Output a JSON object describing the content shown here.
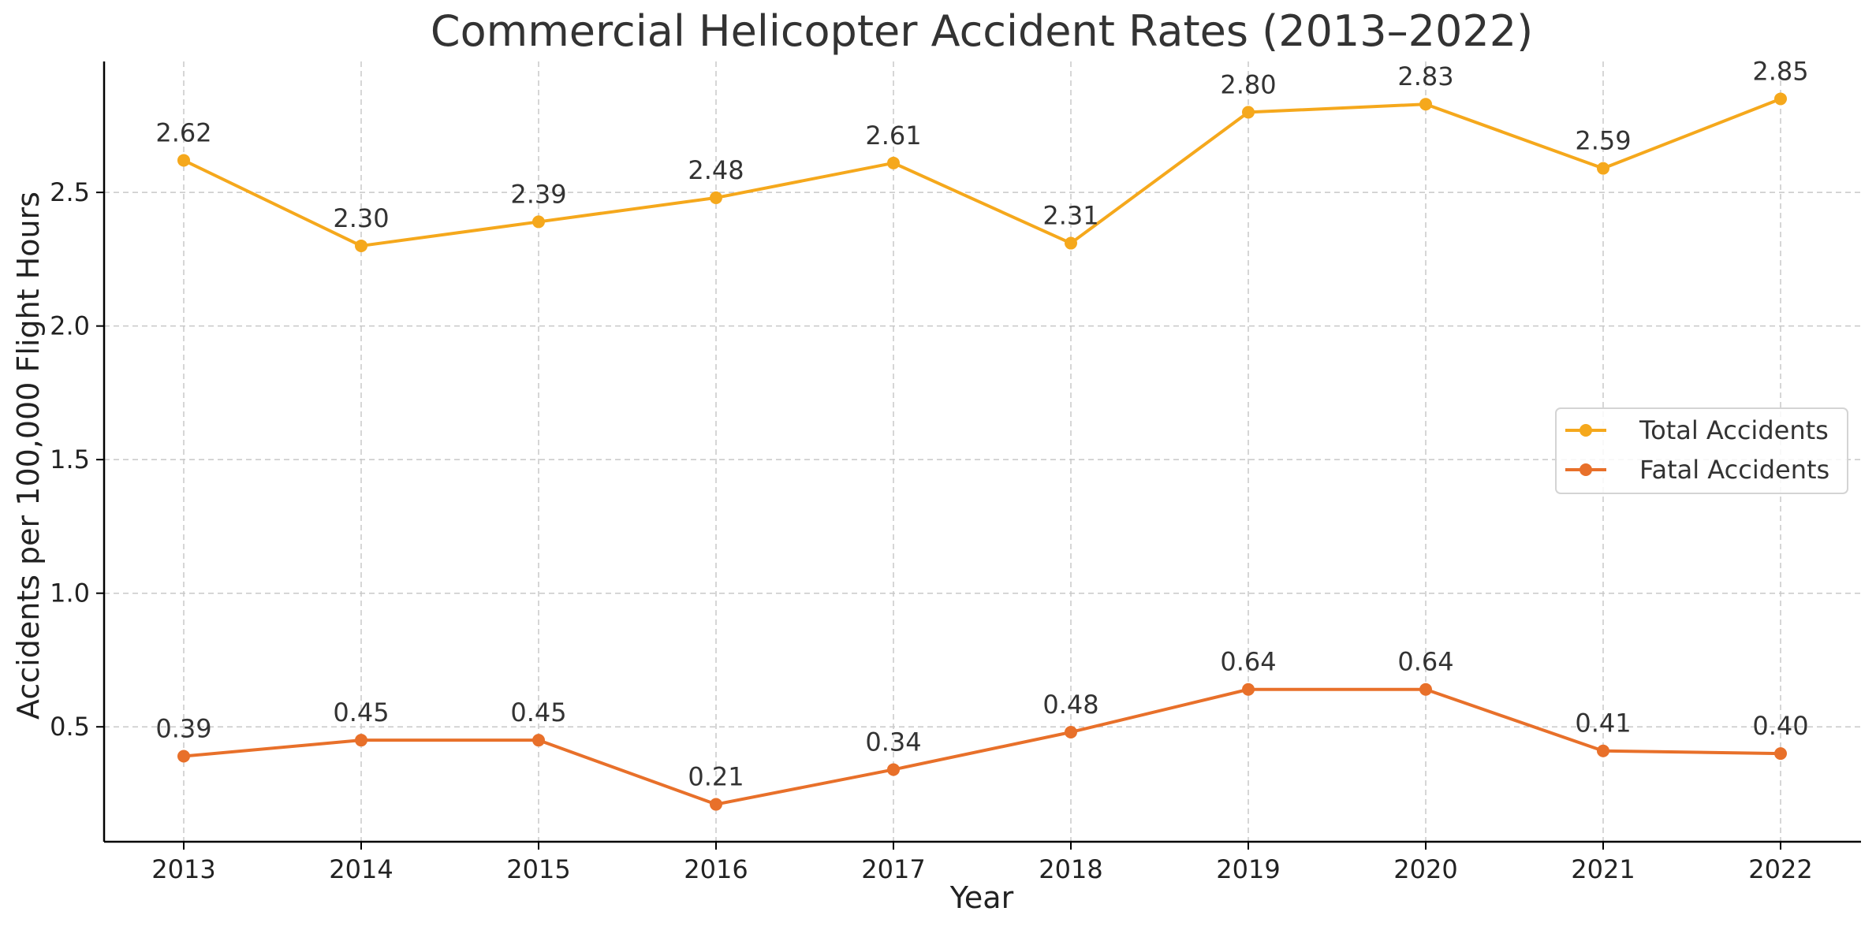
{
  "chart_data": {
    "type": "line",
    "title": "Commercial Helicopter Accident Rates (2013–2022)",
    "xlabel": "Year",
    "ylabel": "Accidents per 100,000 Flight Hours",
    "x": [
      "2013",
      "2014",
      "2015",
      "2016",
      "2017",
      "2018",
      "2019",
      "2020",
      "2021",
      "2022"
    ],
    "ylim": [
      0.07,
      2.99
    ],
    "yticks": [
      0.5,
      1.0,
      1.5,
      2.0,
      2.5
    ],
    "ytick_labels": [
      "0.5",
      "1.0",
      "1.5",
      "2.0",
      "2.5"
    ],
    "grid": true,
    "legend_position": "center-right",
    "series": [
      {
        "name": "Total Accidents",
        "color": "#F5A81C",
        "values": [
          2.62,
          2.3,
          2.39,
          2.48,
          2.61,
          2.31,
          2.8,
          2.83,
          2.59,
          2.85
        ],
        "labels": [
          "2.62",
          "2.30",
          "2.39",
          "2.48",
          "2.61",
          "2.31",
          "2.80",
          "2.83",
          "2.59",
          "2.85"
        ]
      },
      {
        "name": "Fatal Accidents",
        "color": "#E8702A",
        "values": [
          0.39,
          0.45,
          0.45,
          0.21,
          0.34,
          0.48,
          0.64,
          0.64,
          0.41,
          0.4
        ],
        "labels": [
          "0.39",
          "0.45",
          "0.45",
          "0.21",
          "0.34",
          "0.48",
          "0.64",
          "0.64",
          "0.41",
          "0.40"
        ]
      }
    ]
  }
}
